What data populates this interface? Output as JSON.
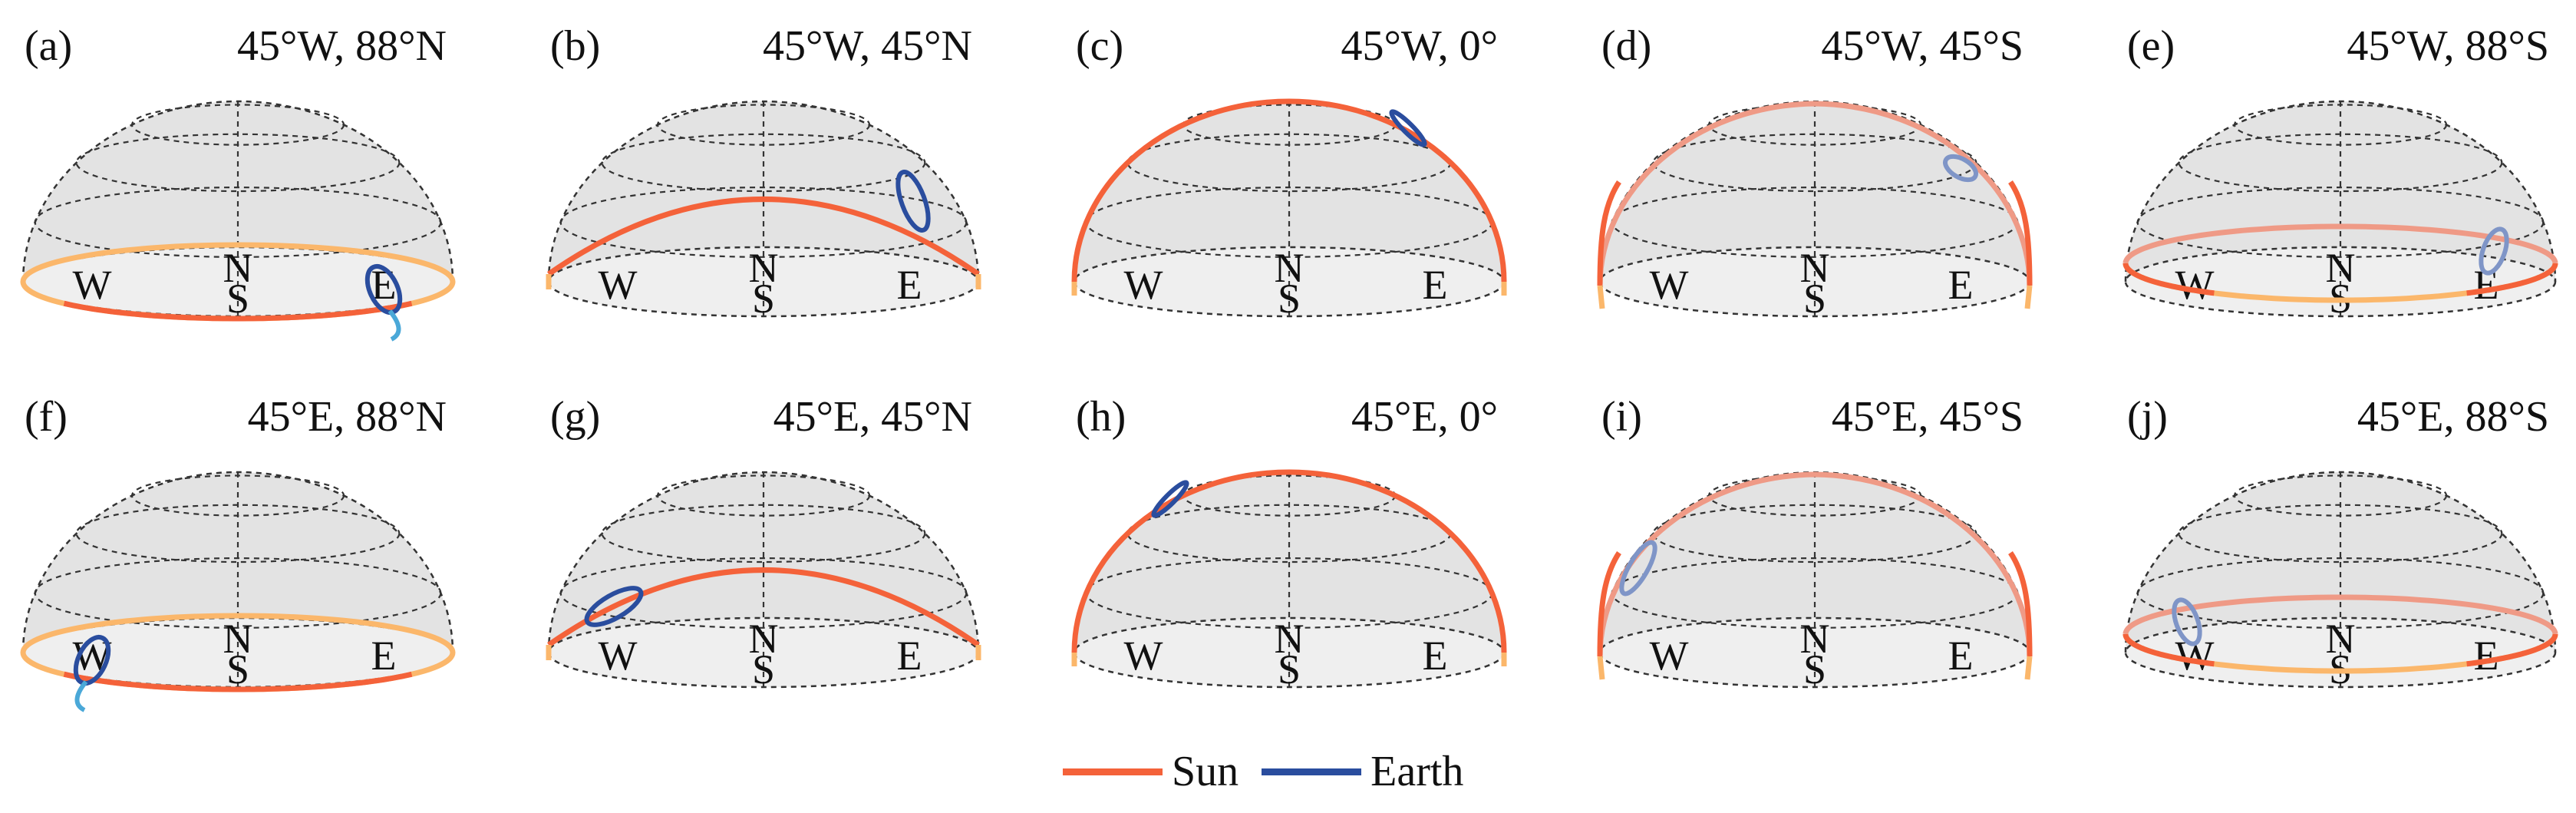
{
  "panels": [
    {
      "label": "(a)",
      "coord": "45°W, 88°N",
      "type": "flat",
      "sun_front": "left",
      "earth_side": "east"
    },
    {
      "label": "(b)",
      "coord": "45°W, 45°N",
      "type": "mid_n",
      "earth_side": "east"
    },
    {
      "label": "(c)",
      "coord": "45°W, 0°",
      "type": "equator",
      "earth_side": "east"
    },
    {
      "label": "(d)",
      "coord": "45°W, 45°S",
      "type": "mid_s",
      "earth_side": "east"
    },
    {
      "label": "(e)",
      "coord": "45°W, 88°S",
      "type": "flat_s",
      "earth_side": "east"
    },
    {
      "label": "(f)",
      "coord": "45°E, 88°N",
      "type": "flat",
      "sun_front": "right",
      "earth_side": "west"
    },
    {
      "label": "(g)",
      "coord": "45°E, 45°N",
      "type": "mid_n",
      "earth_side": "west"
    },
    {
      "label": "(h)",
      "coord": "45°E, 0°",
      "type": "equator",
      "earth_side": "west"
    },
    {
      "label": "(i)",
      "coord": "45°E, 45°S",
      "type": "mid_s",
      "earth_side": "west"
    },
    {
      "label": "(j)",
      "coord": "45°E, 88°S",
      "type": "flat_s",
      "earth_side": "west"
    }
  ],
  "compass": {
    "west": "W",
    "east": "E",
    "north": "N",
    "south": "S"
  },
  "legend": [
    {
      "label": "Sun",
      "color": "#f4623a"
    },
    {
      "label": "Earth",
      "color": "#2a4d9e"
    }
  ],
  "colors": {
    "sun": "#f4623a",
    "sun_faded": "#ef9a86",
    "sun_below": "#fbb76b",
    "earth": "#2a4d9e",
    "earth_faded": "#7f95c7",
    "earth_light": "#4aa8d8",
    "dome_fill": "#e3e3e3",
    "base_fill": "#efefef"
  }
}
